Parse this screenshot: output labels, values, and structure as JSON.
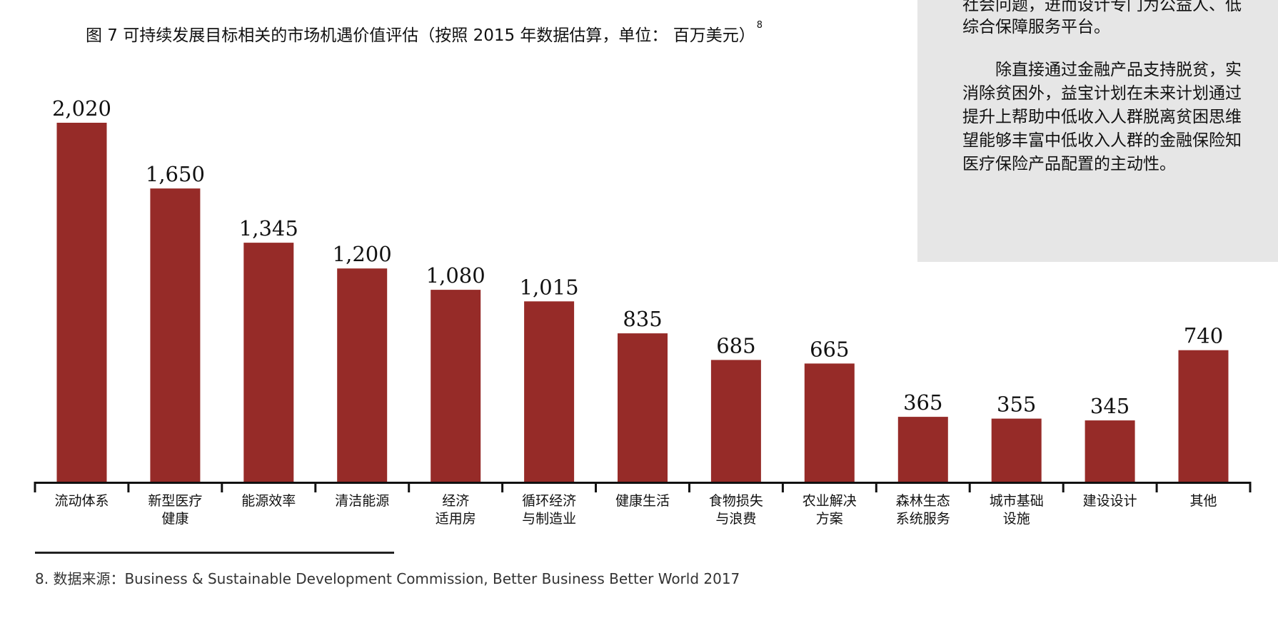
{
  "title": {
    "text": "图 7  可持续发展目标相关的市场机遇价值评估（按照 2015 年数据估算，单位： 百万美元）",
    "footnote_ref": "8"
  },
  "chart_data": {
    "type": "bar",
    "categories": [
      "流动体系",
      "新型医疗\n健康",
      "能源效率",
      "清洁能源",
      "经济\n适用房",
      "循环经济\n与制造业",
      "健康生活",
      "食物损失\n与浪费",
      "农业解决\n方案",
      "森林生态\n系统服务",
      "城市基础\n设施",
      "建设设计",
      "其他"
    ],
    "values": [
      2020,
      1650,
      1345,
      1200,
      1080,
      1015,
      835,
      685,
      665,
      365,
      355,
      345,
      740
    ],
    "value_labels": [
      "2,020",
      "1,650",
      "1,345",
      "1,200",
      "1,080",
      "1,015",
      "835",
      "685",
      "665",
      "365",
      "355",
      "345",
      "740"
    ],
    "ylim": [
      0,
      2020
    ],
    "bar_color": "#962b28",
    "grid": false
  },
  "side_panel": {
    "lines": [
      "社会问题，进而设计专门为公益人、低",
      "综合保障服务平台。",
      "",
      "　　除直接通过金融产品支持脱贫，实",
      "消除贫困外，益宝计划在未来计划通过",
      "提升上帮助中低收入人群脱离贫困思维",
      "望能够丰富中低收入人群的金融保险知",
      "医疗保险产品配置的主动性。"
    ]
  },
  "footnote": {
    "text": "8. 数据来源：Business & Sustainable Development Commission, Better Business Better World 2017"
  }
}
